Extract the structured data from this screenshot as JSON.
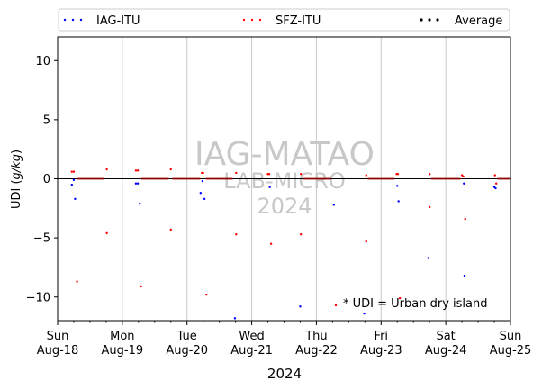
{
  "chart_data": {
    "type": "scatter",
    "title": "",
    "xlabel": "2024",
    "ylabel": "UDI (g/kg)",
    "ylabel_parts": [
      "UDI (",
      "g/kg",
      ")"
    ],
    "ylim": [
      -12,
      12
    ],
    "yticks": [
      -10,
      -5,
      0,
      5,
      10
    ],
    "ytick_labels": [
      "−10",
      "−5",
      "0",
      "5",
      "10"
    ],
    "xlim": [
      0,
      7
    ],
    "xticks": [
      {
        "day": "Sun",
        "date": "Aug-18"
      },
      {
        "day": "Mon",
        "date": "Aug-19"
      },
      {
        "day": "Tue",
        "date": "Aug-20"
      },
      {
        "day": "Wed",
        "date": "Aug-21"
      },
      {
        "day": "Thu",
        "date": "Aug-22"
      },
      {
        "day": "Fri",
        "date": "Aug-23"
      },
      {
        "day": "Sat",
        "date": "Aug-24"
      },
      {
        "day": "Sun",
        "date": "Aug-25"
      }
    ],
    "grid": "vertical",
    "legend_placement": "top",
    "annotation": "* UDI = Urban dry island",
    "watermark": [
      "IAG-MATAO",
      "LAB-MICRO",
      "2024"
    ],
    "series": [
      {
        "name": "IAG-ITU",
        "color": "#0000ff",
        "points": [
          [
            0.22,
            -0.5
          ],
          [
            0.25,
            -0.1
          ],
          [
            0.27,
            -1.7
          ],
          [
            1.21,
            -0.4
          ],
          [
            1.24,
            -0.4
          ],
          [
            1.27,
            -2.1
          ],
          [
            2.21,
            -1.2
          ],
          [
            2.24,
            -0.2
          ],
          [
            2.27,
            -1.7
          ],
          [
            2.74,
            -11.8
          ],
          [
            3.28,
            -0.7
          ],
          [
            3.75,
            -10.8
          ],
          [
            4.27,
            -2.2
          ],
          [
            4.74,
            -11.4
          ],
          [
            5.25,
            -0.6
          ],
          [
            5.27,
            -1.9
          ],
          [
            5.73,
            -6.7
          ],
          [
            6.28,
            -0.4
          ],
          [
            6.29,
            -8.2
          ],
          [
            6.75,
            -0.7
          ],
          [
            6.77,
            -0.8
          ]
        ]
      },
      {
        "name": "SFZ-ITU",
        "color": "#ff0000",
        "points": [
          [
            0.22,
            0.6
          ],
          [
            0.25,
            0.6
          ],
          [
            0.3,
            -8.7
          ],
          [
            0.76,
            0.8
          ],
          [
            0.76,
            -4.6
          ],
          [
            1.21,
            0.7
          ],
          [
            1.24,
            0.7
          ],
          [
            1.29,
            -9.1
          ],
          [
            1.75,
            0.8
          ],
          [
            1.75,
            -4.3
          ],
          [
            2.23,
            0.5
          ],
          [
            2.25,
            0.5
          ],
          [
            2.3,
            -9.8
          ],
          [
            2.76,
            0.5
          ],
          [
            2.76,
            -4.7
          ],
          [
            3.25,
            0.4
          ],
          [
            3.27,
            0.4
          ],
          [
            3.3,
            -5.5
          ],
          [
            3.76,
            0.4
          ],
          [
            3.76,
            -4.7
          ],
          [
            4.3,
            -10.7
          ],
          [
            4.77,
            0.3
          ],
          [
            4.77,
            -5.3
          ],
          [
            5.24,
            0.4
          ],
          [
            5.26,
            0.4
          ],
          [
            5.29,
            -10.1
          ],
          [
            5.75,
            0.4
          ],
          [
            5.75,
            -2.4
          ],
          [
            6.25,
            0.3
          ],
          [
            6.27,
            0.2
          ],
          [
            6.3,
            -3.4
          ],
          [
            6.76,
            0.3
          ],
          [
            6.78,
            -0.4
          ]
        ]
      },
      {
        "name": "Average",
        "color": "#000000",
        "points": []
      }
    ]
  }
}
